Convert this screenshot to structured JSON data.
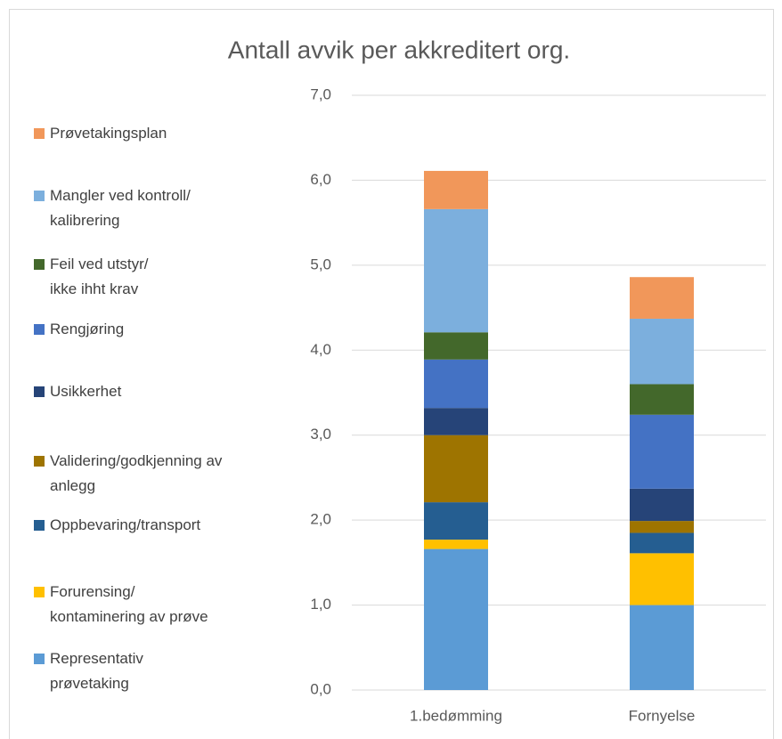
{
  "chart_data": {
    "type": "stacked_bar",
    "title": "Antall avvik per akkreditert org.",
    "categories": [
      "1.bedømming",
      "Fornyelse"
    ],
    "series": [
      {
        "name": "Representativ\nprøvetaking",
        "color": "#5b9bd5",
        "values": [
          1.66,
          1.0
        ]
      },
      {
        "name": "Forurensing/\nkontaminering av prøve",
        "color": "#ffc000",
        "values": [
          0.11,
          0.61
        ]
      },
      {
        "name": "Oppbevaring/transport",
        "color": "#255e91",
        "values": [
          0.44,
          0.24
        ]
      },
      {
        "name": "Validering/godkjenning av\nanlegg",
        "color": "#9e7400",
        "values": [
          0.79,
          0.14
        ]
      },
      {
        "name": "Usikkerhet",
        "color": "#264478",
        "values": [
          0.32,
          0.38
        ]
      },
      {
        "name": "Rengjøring",
        "color": "#4472c4",
        "values": [
          0.57,
          0.87
        ]
      },
      {
        "name": "Feil ved utstyr/\nikke ihht krav",
        "color": "#43682b",
        "values": [
          0.32,
          0.36
        ]
      },
      {
        "name": "Mangler ved kontroll/\nkalibrering",
        "color": "#7cafdd",
        "values": [
          1.45,
          0.77
        ]
      },
      {
        "name": "Prøvetakingsplan",
        "color": "#f1975a",
        "values": [
          0.45,
          0.49
        ]
      }
    ],
    "ylim": [
      0,
      7
    ],
    "yticks": [
      {
        "value": 0,
        "label": "0,0"
      },
      {
        "value": 1,
        "label": "1,0"
      },
      {
        "value": 2,
        "label": "2,0"
      },
      {
        "value": 3,
        "label": "3,0"
      },
      {
        "value": 4,
        "label": "4,0"
      },
      {
        "value": 5,
        "label": "5,0"
      },
      {
        "value": 6,
        "label": "6,0"
      },
      {
        "value": 7,
        "label": "7,0"
      }
    ],
    "grid": true,
    "legend": "left"
  }
}
